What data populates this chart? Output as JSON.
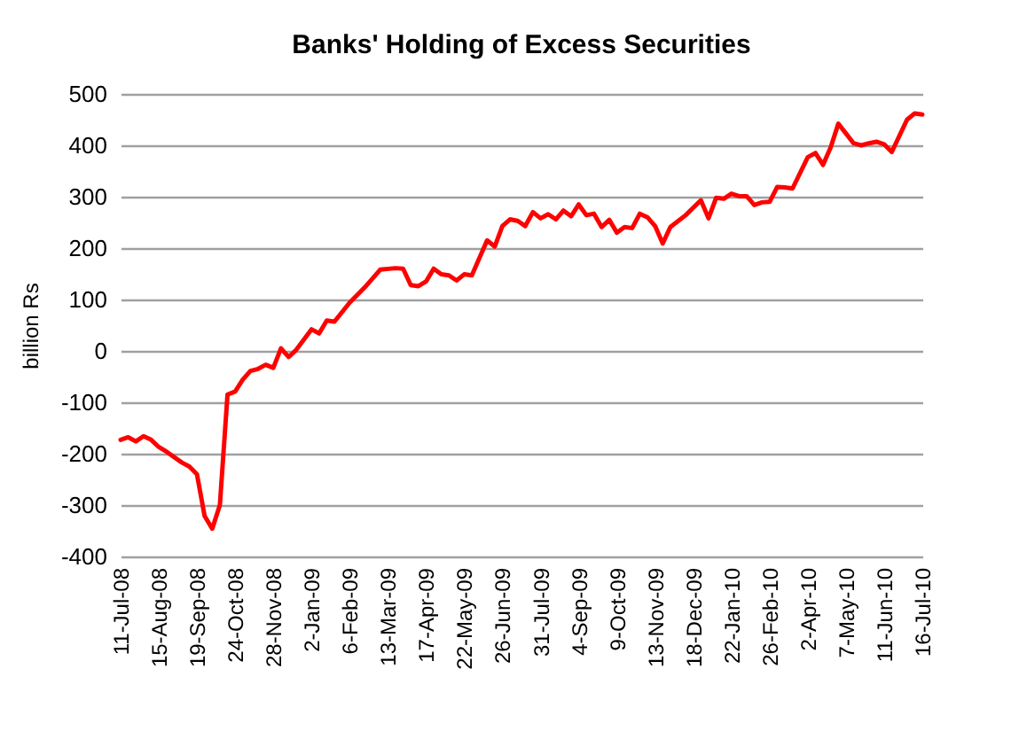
{
  "chart_data": {
    "type": "line",
    "title": "Banks' Holding of Excess Securities",
    "ylabel": "billion Rs",
    "x": [
      "2008-07-11",
      "2008-07-18",
      "2008-07-25",
      "2008-08-01",
      "2008-08-08",
      "2008-08-15",
      "2008-08-22",
      "2008-09-05",
      "2008-09-12",
      "2008-09-19",
      "2008-09-26",
      "2008-10-03",
      "2008-10-10",
      "2008-10-17",
      "2008-10-24",
      "2008-10-31",
      "2008-11-07",
      "2008-11-14",
      "2008-11-21",
      "2008-11-28",
      "2008-12-05",
      "2008-12-12",
      "2008-12-19",
      "2009-01-02",
      "2009-01-09",
      "2009-01-16",
      "2009-01-23",
      "2009-02-06",
      "2009-02-20",
      "2009-03-06",
      "2009-03-20",
      "2009-03-27",
      "2009-04-03",
      "2009-04-10",
      "2009-04-17",
      "2009-04-24",
      "2009-05-01",
      "2009-05-08",
      "2009-05-15",
      "2009-05-22",
      "2009-05-29",
      "2009-06-12",
      "2009-06-19",
      "2009-06-26",
      "2009-07-03",
      "2009-07-10",
      "2009-07-17",
      "2009-07-24",
      "2009-07-31",
      "2009-08-07",
      "2009-08-14",
      "2009-08-21",
      "2009-08-28",
      "2009-09-04",
      "2009-09-11",
      "2009-09-18",
      "2009-09-25",
      "2009-10-02",
      "2009-10-09",
      "2009-10-16",
      "2009-10-23",
      "2009-10-30",
      "2009-11-06",
      "2009-11-13",
      "2009-11-20",
      "2009-11-27",
      "2009-12-11",
      "2009-12-25",
      "2010-01-01",
      "2010-01-08",
      "2010-01-15",
      "2010-01-22",
      "2010-01-29",
      "2010-02-05",
      "2010-02-12",
      "2010-02-19",
      "2010-02-26",
      "2010-03-05",
      "2010-03-12",
      "2010-03-19",
      "2010-04-02",
      "2010-04-09",
      "2010-04-16",
      "2010-04-23",
      "2010-04-30",
      "2010-05-07",
      "2010-05-14",
      "2010-05-21",
      "2010-05-28",
      "2010-06-04",
      "2010-06-11",
      "2010-06-18",
      "2010-07-02",
      "2010-07-09",
      "2010-07-16"
    ],
    "series": [
      {
        "color": "#ff0000",
        "values": [
          -173,
          -168,
          -176,
          -166,
          -173,
          -187,
          -196,
          -217,
          -225,
          -240,
          -321,
          -346,
          -300,
          -85,
          -79,
          -56,
          -39,
          -35,
          -27,
          -33,
          5,
          -12,
          2,
          42,
          34,
          59,
          57,
          94,
          124,
          158,
          161,
          160,
          128,
          126,
          135,
          160,
          149,
          147,
          137,
          149,
          147,
          215,
          203,
          243,
          256,
          253,
          243,
          270,
          258,
          266,
          256,
          273,
          262,
          285,
          264,
          267,
          241,
          255,
          230,
          241,
          239,
          267,
          260,
          243,
          209,
          241,
          264,
          293,
          258,
          298,
          296,
          306,
          301,
          301,
          284,
          289,
          290,
          319,
          318,
          316,
          377,
          385,
          362,
          396,
          442,
          423,
          404,
          400,
          404,
          407,
          402,
          387,
          450,
          462,
          460
        ]
      }
    ],
    "xlim": [
      "2008-07-11",
      "2010-07-16"
    ],
    "xticks": [
      {
        "value": "2008-07-11",
        "label": "11-Jul-08"
      },
      {
        "value": "2008-08-15",
        "label": "15-Aug-08"
      },
      {
        "value": "2008-09-19",
        "label": "19-Sep-08"
      },
      {
        "value": "2008-10-24",
        "label": "24-Oct-08"
      },
      {
        "value": "2008-11-28",
        "label": "28-Nov-08"
      },
      {
        "value": "2009-01-02",
        "label": "2-Jan-09"
      },
      {
        "value": "2009-02-06",
        "label": "6-Feb-09"
      },
      {
        "value": "2009-03-13",
        "label": "13-Mar-09"
      },
      {
        "value": "2009-04-17",
        "label": "17-Apr-09"
      },
      {
        "value": "2009-05-22",
        "label": "22-May-09"
      },
      {
        "value": "2009-06-26",
        "label": "26-Jun-09"
      },
      {
        "value": "2009-07-31",
        "label": "31-Jul-09"
      },
      {
        "value": "2009-09-04",
        "label": "4-Sep-09"
      },
      {
        "value": "2009-10-09",
        "label": "9-Oct-09"
      },
      {
        "value": "2009-11-13",
        "label": "13-Nov-09"
      },
      {
        "value": "2009-12-18",
        "label": "18-Dec-09"
      },
      {
        "value": "2010-01-22",
        "label": "22-Jan-10"
      },
      {
        "value": "2010-02-26",
        "label": "26-Feb-10"
      },
      {
        "value": "2010-04-02",
        "label": "2-Apr-10"
      },
      {
        "value": "2010-05-07",
        "label": "7-May-10"
      },
      {
        "value": "2010-06-11",
        "label": "11-Jun-10"
      },
      {
        "value": "2010-07-16",
        "label": "16-Jul-10"
      }
    ],
    "ylim": [
      -400,
      500
    ],
    "yticks": [
      -400,
      -300,
      -200,
      -100,
      0,
      100,
      200,
      300,
      400,
      500
    ],
    "grid": "y",
    "marker": "none",
    "line_style": "solid"
  }
}
